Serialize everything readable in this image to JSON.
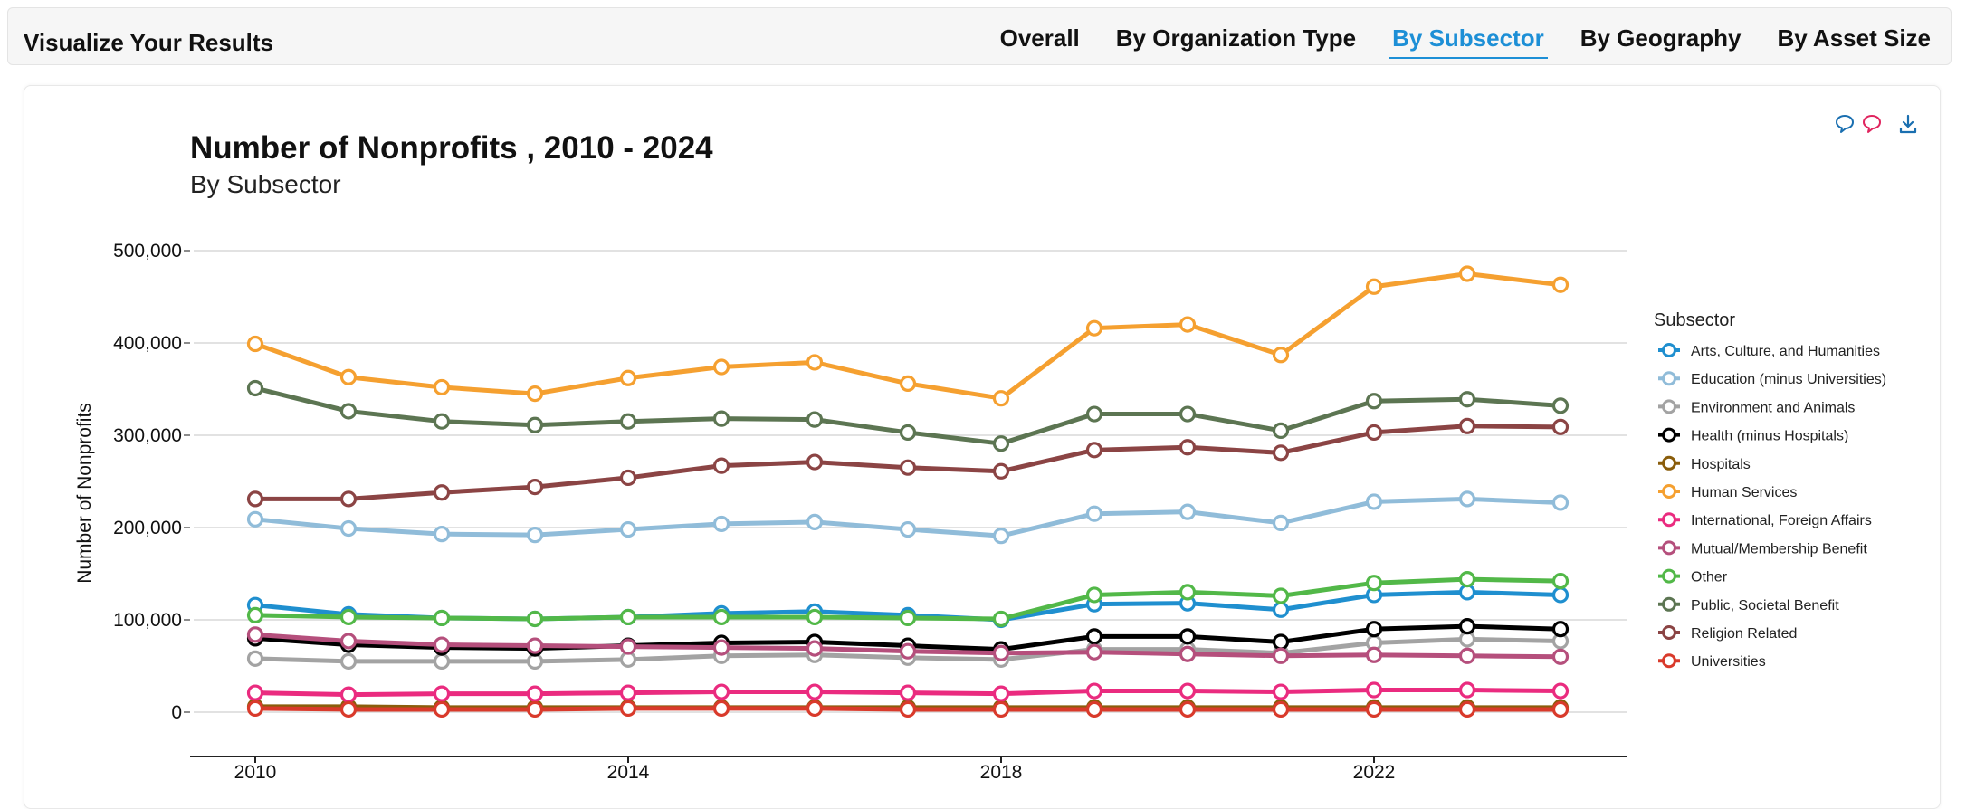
{
  "header": {
    "title": "Visualize Your Results",
    "tabs": [
      {
        "label": "Overall",
        "active": false
      },
      {
        "label": "By Organization Type",
        "active": false
      },
      {
        "label": "By Subsector",
        "active": true
      },
      {
        "label": "By Geography",
        "active": false
      },
      {
        "label": "By Asset Size",
        "active": false
      }
    ]
  },
  "tools": {
    "icons": [
      "comment-icon",
      "comment-alt-icon",
      "download-icon"
    ],
    "colors": [
      "#1a6fb0",
      "#e0245e",
      "#1a6fb0"
    ]
  },
  "chart_data": {
    "type": "line",
    "title": "Number of Nonprofits , 2010 - 2024",
    "subtitle": "By Subsector",
    "ylabel": "Number of Nonprofits",
    "xlabel": "",
    "x": [
      2010,
      2011,
      2012,
      2013,
      2014,
      2015,
      2016,
      2017,
      2018,
      2019,
      2020,
      2021,
      2022,
      2023,
      2024
    ],
    "xticks": [
      2010,
      2014,
      2018,
      2022
    ],
    "ylim": [
      0,
      500000
    ],
    "yticks": [
      0,
      100000,
      200000,
      300000,
      400000,
      500000
    ],
    "ytick_labels": [
      "0",
      "100,000",
      "200,000",
      "300,000",
      "400,000",
      "500,000"
    ],
    "grid": true,
    "legend_title": "Subsector",
    "legend_position": "right",
    "series": [
      {
        "name": "Arts, Culture, and Humanities",
        "color": "#1f8fcf",
        "values": [
          116000,
          106000,
          102000,
          101000,
          103000,
          107000,
          109000,
          105000,
          100000,
          117000,
          118000,
          111000,
          127000,
          130000,
          127000
        ]
      },
      {
        "name": "Education (minus Universities)",
        "color": "#90bcd9",
        "values": [
          209000,
          199000,
          193000,
          192000,
          198000,
          204000,
          206000,
          198000,
          191000,
          215000,
          217000,
          205000,
          228000,
          231000,
          227000
        ]
      },
      {
        "name": "Environment and Animals",
        "color": "#a3a3a3",
        "values": [
          58000,
          55000,
          55000,
          55000,
          57000,
          61000,
          62000,
          59000,
          57000,
          68000,
          68000,
          64000,
          75000,
          79000,
          77000
        ]
      },
      {
        "name": "Health (minus Hospitals)",
        "color": "#000000",
        "values": [
          80000,
          73000,
          70000,
          69000,
          72000,
          75000,
          76000,
          72000,
          68000,
          82000,
          82000,
          76000,
          90000,
          93000,
          90000
        ]
      },
      {
        "name": "Hospitals",
        "color": "#8a5d0b",
        "values": [
          6000,
          6000,
          5000,
          5000,
          5000,
          5000,
          5000,
          5000,
          5000,
          5000,
          5000,
          5000,
          5000,
          5000,
          5000
        ]
      },
      {
        "name": "Human Services",
        "color": "#f5a030",
        "values": [
          399000,
          363000,
          352000,
          345000,
          362000,
          374000,
          379000,
          356000,
          340000,
          416000,
          420000,
          387000,
          461000,
          475000,
          463000
        ]
      },
      {
        "name": "International, Foreign Affairs",
        "color": "#ea2b7f",
        "values": [
          21000,
          19000,
          20000,
          20000,
          21000,
          22000,
          22000,
          21000,
          20000,
          23000,
          23000,
          22000,
          24000,
          24000,
          23000
        ]
      },
      {
        "name": "Mutual/Membership Benefit",
        "color": "#b54f7c",
        "values": [
          84000,
          77000,
          73000,
          72000,
          71000,
          70000,
          69000,
          66000,
          64000,
          65000,
          63000,
          61000,
          62000,
          61000,
          60000
        ]
      },
      {
        "name": "Other",
        "color": "#52b848",
        "values": [
          105000,
          103000,
          102000,
          101000,
          103000,
          103000,
          103000,
          102000,
          101000,
          127000,
          130000,
          126000,
          140000,
          144000,
          142000
        ]
      },
      {
        "name": "Public, Societal Benefit",
        "color": "#5c7552",
        "values": [
          351000,
          326000,
          315000,
          311000,
          315000,
          318000,
          317000,
          303000,
          291000,
          323000,
          323000,
          305000,
          337000,
          339000,
          332000
        ]
      },
      {
        "name": "Religion Related",
        "color": "#8b4444",
        "values": [
          231000,
          231000,
          238000,
          244000,
          254000,
          267000,
          271000,
          265000,
          261000,
          284000,
          287000,
          281000,
          303000,
          310000,
          309000
        ]
      },
      {
        "name": "Universities",
        "color": "#d93a2b",
        "values": [
          4000,
          3000,
          3000,
          3000,
          4000,
          4000,
          4000,
          3000,
          3000,
          3000,
          3000,
          3000,
          3000,
          3000,
          3000
        ]
      }
    ]
  }
}
